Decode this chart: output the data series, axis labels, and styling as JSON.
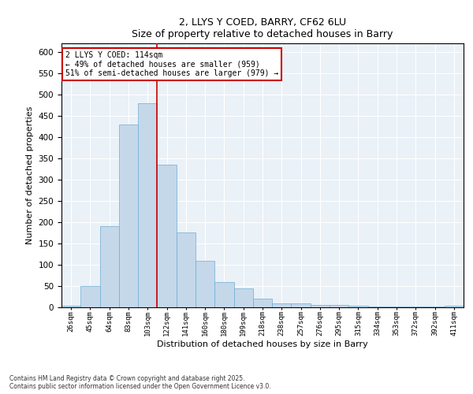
{
  "title1": "2, LLYS Y COED, BARRY, CF62 6LU",
  "title2": "Size of property relative to detached houses in Barry",
  "xlabel": "Distribution of detached houses by size in Barry",
  "ylabel": "Number of detached properties",
  "categories": [
    "26sqm",
    "45sqm",
    "64sqm",
    "83sqm",
    "103sqm",
    "122sqm",
    "141sqm",
    "160sqm",
    "180sqm",
    "199sqm",
    "218sqm",
    "238sqm",
    "257sqm",
    "276sqm",
    "295sqm",
    "315sqm",
    "334sqm",
    "353sqm",
    "372sqm",
    "392sqm",
    "411sqm"
  ],
  "values": [
    3,
    50,
    190,
    430,
    480,
    335,
    175,
    110,
    60,
    45,
    20,
    10,
    10,
    5,
    5,
    3,
    2,
    1,
    2,
    1,
    3
  ],
  "bar_color": "#c5d8ea",
  "bar_edge_color": "#6eadd4",
  "vline_x_idx": 4.5,
  "vline_color": "#cc0000",
  "annotation_box_text": "2 LLYS Y COED: 114sqm\n← 49% of detached houses are smaller (959)\n51% of semi-detached houses are larger (979) →",
  "annotation_box_color": "#cc0000",
  "bg_color": "#eaf1f7",
  "grid_color": "#ffffff",
  "footer": "Contains HM Land Registry data © Crown copyright and database right 2025.\nContains public sector information licensed under the Open Government Licence v3.0.",
  "ylim": [
    0,
    620
  ],
  "yticks": [
    0,
    50,
    100,
    150,
    200,
    250,
    300,
    350,
    400,
    450,
    500,
    550,
    600
  ]
}
